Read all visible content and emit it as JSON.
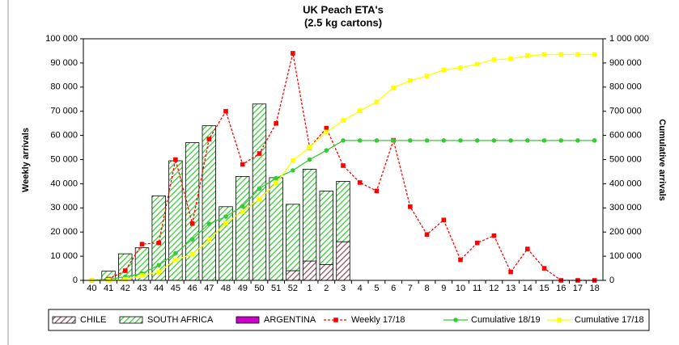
{
  "chart_data": {
    "type": "bar",
    "title": "UK Peach ETA's",
    "subtitle": "(2.5 kg cartons)",
    "y_label": "Weekly arrivals",
    "y2_label": "Cumulative arrivals",
    "categories": [
      "40",
      "41",
      "42",
      "43",
      "44",
      "45",
      "46",
      "47",
      "48",
      "49",
      "50",
      "51",
      "52",
      "1",
      "2",
      "3",
      "4",
      "5",
      "6",
      "7",
      "8",
      "9",
      "10",
      "11",
      "12",
      "13",
      "14",
      "15",
      "16",
      "17",
      "18"
    ],
    "ylim": [
      0,
      100000
    ],
    "yticks": [
      0,
      {
        "value": 10000,
        "label": "10 000"
      },
      {
        "value": 20000,
        "label": "20 000"
      },
      {
        "value": 30000,
        "label": "30 000"
      },
      {
        "value": 40000,
        "label": "40 000"
      },
      {
        "value": 50000,
        "label": "50 000"
      },
      {
        "value": 60000,
        "label": "60 000"
      },
      {
        "value": 70000,
        "label": "70 000"
      },
      {
        "value": 80000,
        "label": "80 000"
      },
      {
        "value": 90000,
        "label": "90 000"
      },
      {
        "value": 100000,
        "label": "100 000"
      }
    ],
    "y2lim": [
      0,
      1000000
    ],
    "y2ticks": [
      0,
      {
        "value": 100000,
        "label": "100 000"
      },
      {
        "value": 200000,
        "label": "200 000"
      },
      {
        "value": 300000,
        "label": "300 000"
      },
      {
        "value": 400000,
        "label": "400 000"
      },
      {
        "value": 500000,
        "label": "500 000"
      },
      {
        "value": 600000,
        "label": "600 000"
      },
      {
        "value": 700000,
        "label": "700 000"
      },
      {
        "value": 800000,
        "label": "800 000"
      },
      {
        "value": 900000,
        "label": "900 000"
      },
      {
        "value": 1000000,
        "label": "1 000 000"
      }
    ],
    "stacked": true,
    "series": [
      {
        "name": "CHILE",
        "type": "bar",
        "color": "#8b4a5a",
        "pattern": "hatch",
        "values": [
          0,
          0,
          0,
          0,
          0,
          0,
          0,
          0,
          0,
          0,
          0,
          0,
          4000,
          8000,
          6500,
          16000,
          0,
          0,
          0,
          0,
          0,
          0,
          0,
          0,
          0,
          0,
          0,
          0,
          0,
          0,
          0
        ]
      },
      {
        "name": "SOUTH AFRICA",
        "type": "bar",
        "color": "#33cc33",
        "pattern": "hatch",
        "values": [
          0,
          3800,
          11000,
          13500,
          35000,
          49500,
          57000,
          64000,
          30500,
          43000,
          73000,
          42500,
          27500,
          38000,
          30500,
          25000,
          0,
          0,
          0,
          0,
          0,
          0,
          0,
          0,
          0,
          0,
          0,
          0,
          0,
          0,
          0
        ]
      },
      {
        "name": "ARGENTINA",
        "type": "bar",
        "color": "#cc00cc",
        "values": [
          0,
          0,
          0,
          0,
          0,
          0,
          0,
          0,
          0,
          0,
          0,
          0,
          0,
          0,
          0,
          0,
          0,
          0,
          0,
          0,
          0,
          0,
          0,
          0,
          0,
          0,
          0,
          0,
          0,
          0,
          0
        ]
      },
      {
        "name": "Weekly 17/18",
        "type": "line",
        "color": "#ff0000",
        "dashed": true,
        "marker": "square",
        "values": [
          0,
          500,
          4000,
          15000,
          15500,
          50000,
          23500,
          58500,
          70000,
          48000,
          52500,
          65000,
          94000,
          55000,
          63000,
          47500,
          40500,
          37000,
          58000,
          30500,
          19000,
          25000,
          8500,
          15500,
          18500,
          3500,
          13000,
          5000,
          0,
          0,
          0
        ]
      },
      {
        "name": "Cumulative 18/19",
        "type": "line",
        "axis": "y2",
        "color": "#33cc33",
        "marker": "circle",
        "values": [
          0,
          3800,
          15000,
          28000,
          63000,
          112000,
          170000,
          234000,
          264000,
          307000,
          380000,
          423000,
          455000,
          500000,
          538000,
          579000,
          579000,
          579000,
          579000,
          579000,
          579000,
          579000,
          579000,
          579000,
          579000,
          579000,
          579000,
          579000,
          579000,
          579000,
          579000
        ]
      },
      {
        "name": "Cumulative 17/18",
        "type": "line",
        "axis": "y2",
        "color": "#ffff00",
        "marker": "square",
        "values": [
          0,
          500,
          4500,
          19500,
          35000,
          85000,
          108000,
          167000,
          237000,
          285000,
          337000,
          402000,
          496000,
          551000,
          614000,
          662000,
          702000,
          739000,
          797000,
          827000,
          846000,
          871000,
          880000,
          895000,
          914000,
          917000,
          930000,
          935000,
          935000,
          935000,
          935000
        ]
      }
    ]
  }
}
